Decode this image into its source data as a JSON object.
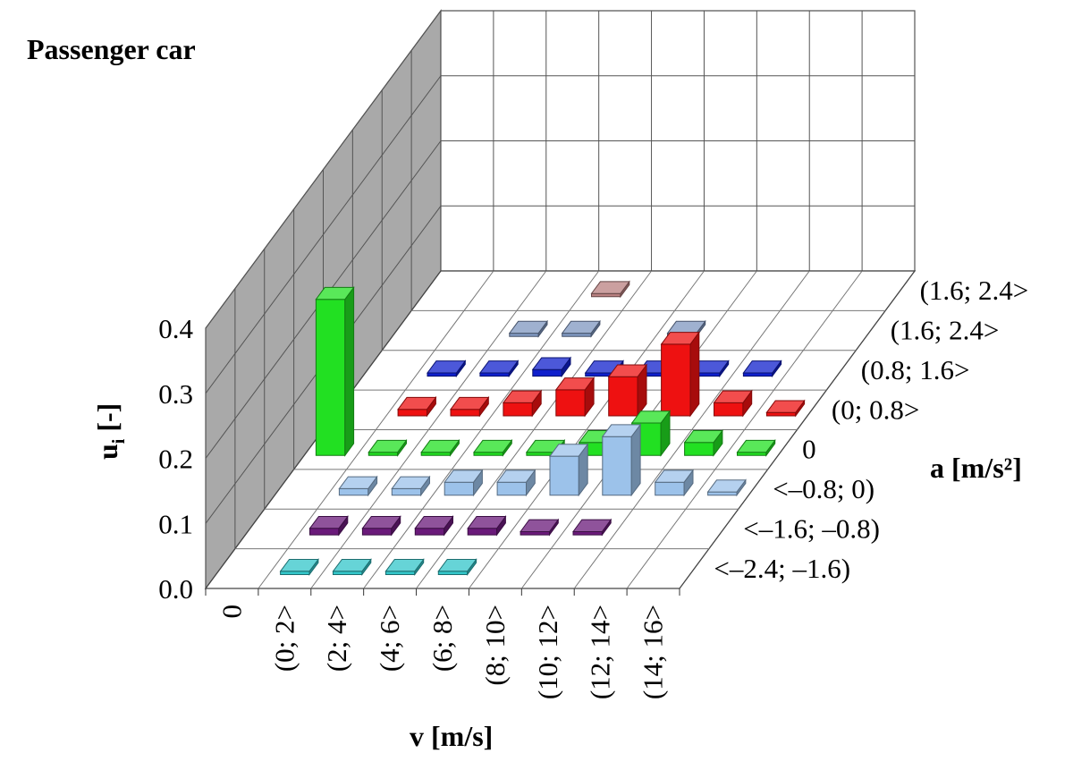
{
  "chart_data": {
    "type": "bar",
    "subtype": "3d-bar-grid",
    "title": "Passenger car",
    "ylabel": "u",
    "ylabel_sub": "i",
    "ylabel_suffix": " [-]",
    "xlabel": "v [m/s]",
    "zlabel": "a [m/s²]",
    "ylim": [
      0.0,
      0.4
    ],
    "y_ticks": [
      "0.0",
      "0.1",
      "0.2",
      "0.3",
      "0.4"
    ],
    "v_categories": [
      "0",
      "(0; 2>",
      "(2; 4>",
      "(4; 6>",
      "(6; 8>",
      "(8; 10>",
      "(10; 12>",
      "(12; 14>",
      "(14; 16>"
    ],
    "a_categories": [
      "<–2.4; –1.6)",
      "<–1.6; –0.8)",
      "<–0.8; 0)",
      "0",
      "(0; 0.8>",
      "(0.8; 1.6>",
      "(1.6; 2.4>",
      "(1.6; 2.4>"
    ],
    "grid": true,
    "series": [
      {
        "a_index": 0,
        "color": "#33c6c9",
        "values": [
          null,
          0.0,
          0.0,
          0.0,
          0.0,
          null,
          null,
          null,
          null
        ]
      },
      {
        "a_index": 1,
        "color": "#6a1a7a",
        "values": [
          null,
          0.01,
          0.01,
          0.01,
          0.01,
          0.0,
          0.0,
          null,
          null
        ]
      },
      {
        "a_index": 2,
        "color": "#9cc2ea",
        "values": [
          null,
          0.01,
          0.01,
          0.02,
          0.02,
          0.06,
          0.09,
          0.02,
          0.0
        ]
      },
      {
        "a_index": 3,
        "color": "#22e022",
        "values": [
          0.24,
          0.0,
          0.0,
          0.0,
          0.0,
          0.02,
          0.05,
          0.02,
          0.0
        ]
      },
      {
        "a_index": 4,
        "color": "#ee1111",
        "values": [
          null,
          0.01,
          0.01,
          0.02,
          0.04,
          0.06,
          0.11,
          0.02,
          0.0
        ]
      },
      {
        "a_index": 5,
        "color": "#1020cc",
        "values": [
          null,
          0.0,
          0.0,
          0.01,
          0.0,
          0.0,
          0.0,
          0.0,
          null
        ]
      },
      {
        "a_index": 6,
        "color": "#7f97c0",
        "values": [
          null,
          null,
          0.0,
          0.0,
          null,
          0.0,
          null,
          null,
          null
        ]
      },
      {
        "a_index": 7,
        "color": "#b98080",
        "values": [
          null,
          null,
          null,
          0.0,
          null,
          null,
          null,
          null,
          null
        ]
      }
    ]
  }
}
